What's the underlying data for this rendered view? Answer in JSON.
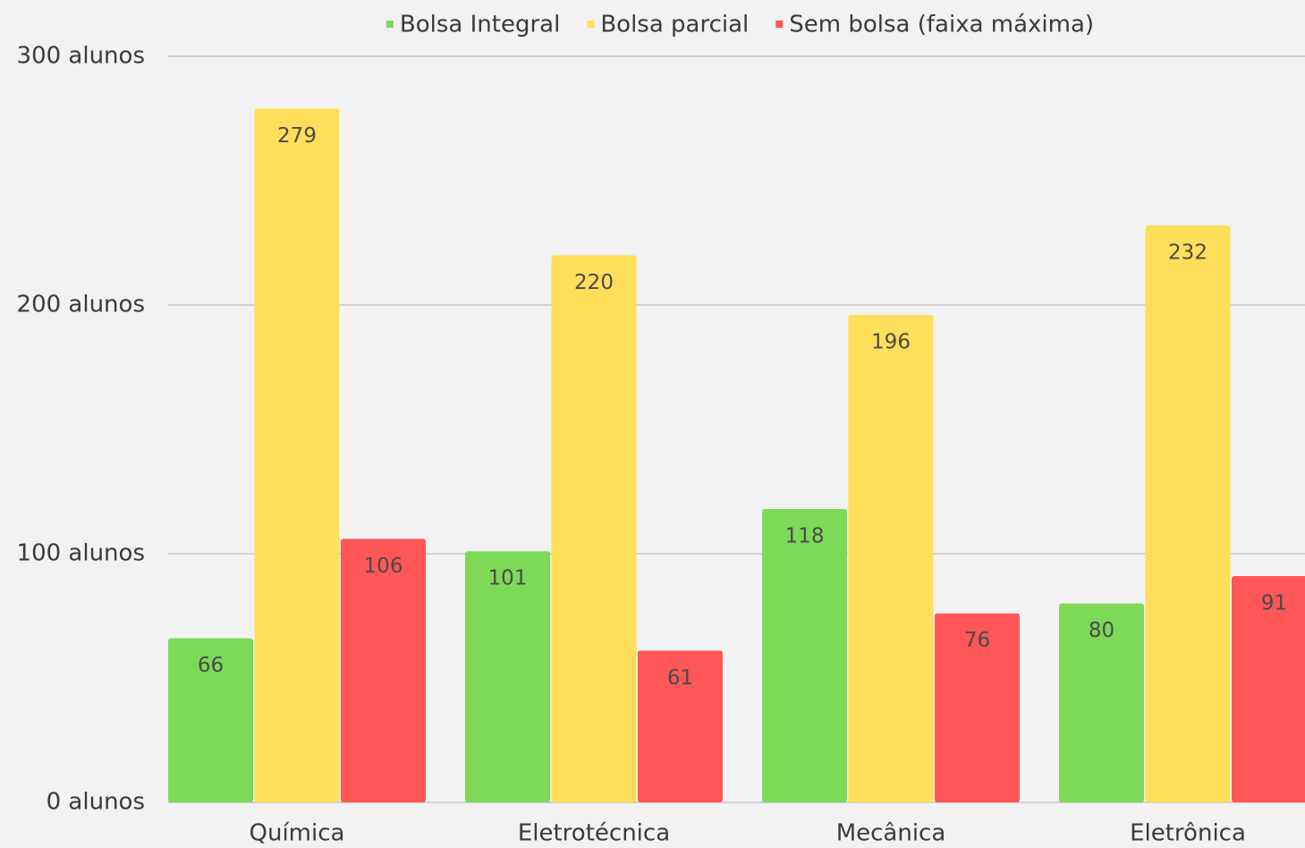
{
  "chart_data": {
    "type": "bar",
    "categories": [
      "Química",
      "Eletrotécnica",
      "Mecânica",
      "Eletrônica"
    ],
    "series": [
      {
        "name": "Bolsa Integral",
        "color": "#7ed957",
        "values": [
          66,
          101,
          118,
          80
        ]
      },
      {
        "name": "Bolsa parcial",
        "color": "#ffde59",
        "values": [
          279,
          220,
          196,
          232
        ]
      },
      {
        "name": "Sem bolsa (faixa máxima)",
        "color": "#ff5757",
        "values": [
          106,
          61,
          76,
          91
        ]
      }
    ],
    "ylim": [
      0,
      300
    ],
    "yticks": [
      {
        "value": 0,
        "label": "0 alunos"
      },
      {
        "value": 100,
        "label": "100 alunos"
      },
      {
        "value": 200,
        "label": "200 alunos"
      },
      {
        "value": 300,
        "label": "300 alunos"
      }
    ],
    "grid": true,
    "legend": "top"
  }
}
